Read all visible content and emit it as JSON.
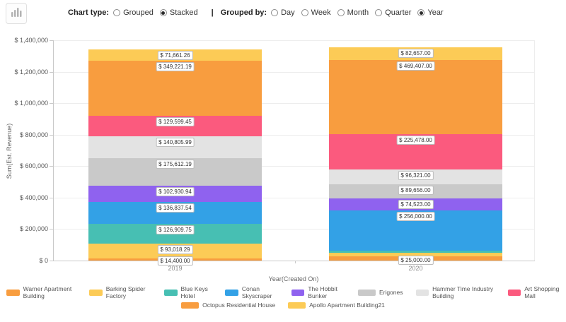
{
  "toolbar": {
    "icon": "bar-chart-icon",
    "chart_type": {
      "label": "Chart type:",
      "options": [
        {
          "label": "Grouped",
          "selected": false
        },
        {
          "label": "Stacked",
          "selected": true
        }
      ]
    },
    "separator": "|",
    "grouped_by": {
      "label": "Grouped by:",
      "options": [
        {
          "label": "Day",
          "selected": false
        },
        {
          "label": "Week",
          "selected": false
        },
        {
          "label": "Month",
          "selected": false
        },
        {
          "label": "Quarter",
          "selected": false
        },
        {
          "label": "Year",
          "selected": true
        }
      ]
    }
  },
  "chart_data": {
    "type": "bar",
    "stacked": true,
    "title": "",
    "xlabel": "Year(Created On)",
    "ylabel": "Sum(Est. Revenue)",
    "ylim": [
      0,
      1400000
    ],
    "ytick_step": 200000,
    "ytick_labels": [
      "$ 0",
      "$ 200,000",
      "$ 400,000",
      "$ 600,000",
      "$ 800,000",
      "$ 1,000,000",
      "$ 1,200,000",
      "$ 1,400,000"
    ],
    "grid": true,
    "legend_position": "bottom",
    "categories": [
      "2019",
      "2020"
    ],
    "series": [
      {
        "name": "Warner Apartment Building",
        "color": "#F89D3F",
        "values": [
          14400.0,
          25000.0
        ],
        "labels": [
          "$ 14,400.00",
          "$ 25,000.00"
        ]
      },
      {
        "name": "Barking Spider Factory",
        "color": "#FCCB56",
        "values": [
          93018.29,
          26000
        ],
        "labels": [
          "$ 93,018.29",
          null
        ]
      },
      {
        "name": "Blue Keys Hotel",
        "color": "#47BFB3",
        "values": [
          126909.75,
          12000
        ],
        "labels": [
          "$ 126,909.75",
          null
        ]
      },
      {
        "name": "Conan Skyscraper",
        "color": "#33A1E6",
        "values": [
          136837.54,
          256000.0
        ],
        "labels": [
          "$ 136,837.54",
          "$ 256,000.00"
        ]
      },
      {
        "name": "The Hobbit Bunker",
        "color": "#8F62EF",
        "values": [
          102930.94,
          74523.0
        ],
        "labels": [
          "$ 102,930.94",
          "$ 74,523.00"
        ]
      },
      {
        "name": "Erigones",
        "color": "#C9C9C9",
        "values": [
          175612.19,
          89656.0
        ],
        "labels": [
          "$ 175,612.19",
          "$ 89,656.00"
        ]
      },
      {
        "name": "Hammer Time Industry Building",
        "color": "#E3E3E3",
        "values": [
          140805.99,
          96321.0
        ],
        "labels": [
          "$ 140,805.99",
          "$ 96,321.00"
        ]
      },
      {
        "name": "Art Shopping Mall",
        "color": "#FB5A7E",
        "values": [
          129599.45,
          225478.0
        ],
        "labels": [
          "$ 129,599.45",
          "$ 225,478.00"
        ]
      },
      {
        "name": "Octopus Residential House",
        "color": "#F89D3F",
        "values": [
          349221.19,
          469407.0
        ],
        "labels": [
          "$ 349,221.19",
          "$ 469,407.00"
        ]
      },
      {
        "name": "Apollo Apartment Building21",
        "color": "#FCCB56",
        "values": [
          71661.26,
          82657.0
        ],
        "labels": [
          "$ 71,661.26",
          "$ 82,657.00"
        ]
      }
    ]
  }
}
